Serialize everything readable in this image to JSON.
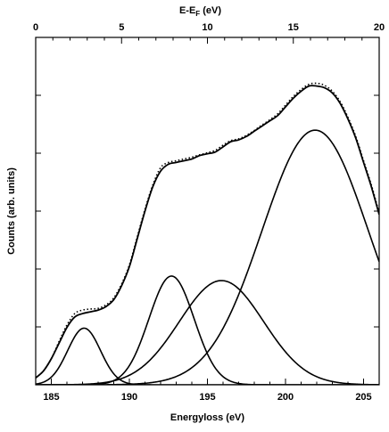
{
  "chart_data": {
    "type": "line",
    "title": "",
    "xlabel": "Energyloss (eV)",
    "ylabel": "Counts (arb. units)",
    "top_xlabel": "E-E",
    "top_xlabel_sub": "F",
    "top_xlabel_unit": " (eV)",
    "xlim": [
      184,
      206
    ],
    "top_xlim": [
      0,
      20
    ],
    "ylim": [
      0,
      1
    ],
    "x_ticks": [
      185,
      190,
      195,
      200,
      205
    ],
    "top_x_ticks": [
      0,
      5,
      10,
      15,
      20
    ],
    "y_tick_labels_shown": false,
    "grid": false,
    "line_color": "#000000",
    "gaussians": [
      {
        "center": 187.1,
        "amplitude": 0.163,
        "sigma": 1.05
      },
      {
        "center": 192.7,
        "amplitude": 0.313,
        "sigma": 1.45
      },
      {
        "center": 195.9,
        "amplitude": 0.3,
        "sigma": 2.7
      },
      {
        "center": 201.9,
        "amplitude": 0.733,
        "sigma": 3.4
      }
    ],
    "series": [
      {
        "style": "solid",
        "x": [
          184.0,
          184.5,
          185.0,
          185.5,
          186.0,
          186.5,
          187.0,
          187.5,
          188.0,
          188.5,
          189.0,
          189.5,
          190.0,
          190.5,
          191.0,
          191.5,
          192.0,
          192.5,
          193.0,
          193.5,
          194.0,
          194.5,
          195.0,
          195.5,
          196.0,
          196.5,
          197.0,
          197.5,
          198.0,
          198.5,
          199.0,
          199.5,
          200.0,
          200.5,
          201.0,
          201.5,
          202.0,
          202.5,
          203.0,
          203.5,
          204.0,
          204.5,
          205.0,
          205.5,
          206.0
        ],
        "y": [
          0.02,
          0.04,
          0.075,
          0.12,
          0.165,
          0.195,
          0.205,
          0.21,
          0.215,
          0.225,
          0.245,
          0.285,
          0.34,
          0.42,
          0.5,
          0.57,
          0.615,
          0.635,
          0.64,
          0.645,
          0.65,
          0.66,
          0.665,
          0.67,
          0.685,
          0.7,
          0.705,
          0.715,
          0.73,
          0.745,
          0.76,
          0.775,
          0.8,
          0.825,
          0.845,
          0.86,
          0.86,
          0.855,
          0.84,
          0.81,
          0.765,
          0.71,
          0.64,
          0.57,
          0.49
        ]
      },
      {
        "style": "dotted",
        "x": [
          184.0,
          184.5,
          185.0,
          185.5,
          186.0,
          186.5,
          187.0,
          187.5,
          188.0,
          188.5,
          189.0,
          189.5,
          190.0,
          190.5,
          191.0,
          191.5,
          192.0,
          192.5,
          193.0,
          193.5,
          194.0,
          194.5,
          195.0,
          195.5,
          196.0,
          196.5,
          197.0,
          197.5,
          198.0,
          198.5,
          199.0,
          199.5,
          200.0,
          200.5,
          201.0,
          201.5,
          202.0,
          202.5,
          203.0,
          203.5,
          204.0,
          204.5,
          205.0,
          205.5,
          206.0
        ],
        "y": [
          0.02,
          0.04,
          0.075,
          0.125,
          0.172,
          0.205,
          0.215,
          0.218,
          0.22,
          0.23,
          0.25,
          0.29,
          0.345,
          0.425,
          0.505,
          0.575,
          0.625,
          0.64,
          0.645,
          0.65,
          0.655,
          0.662,
          0.668,
          0.675,
          0.69,
          0.703,
          0.708,
          0.718,
          0.732,
          0.748,
          0.763,
          0.78,
          0.805,
          0.83,
          0.85,
          0.865,
          0.868,
          0.862,
          0.845,
          0.815,
          0.77,
          0.715,
          0.645,
          0.575,
          0.495
        ]
      }
    ]
  }
}
